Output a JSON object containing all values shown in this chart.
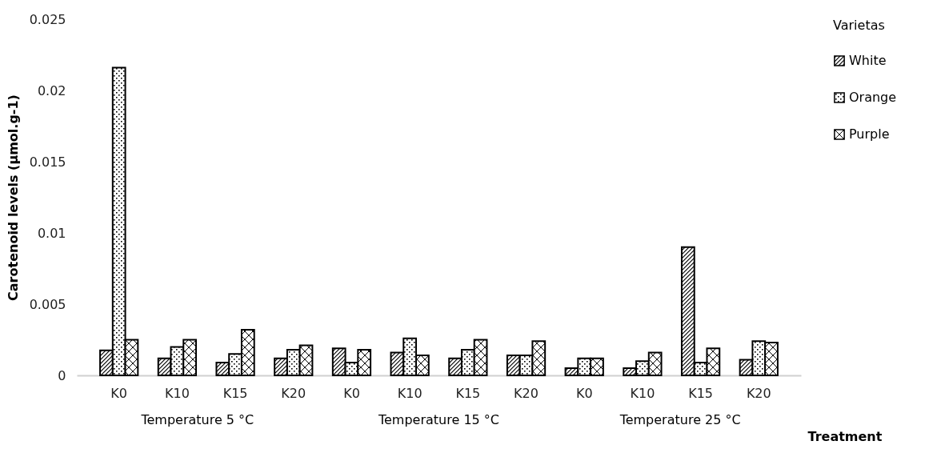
{
  "chart_data": {
    "type": "bar",
    "xlabel": "Treatment",
    "ylabel": "Carotenoid levels (µmol.g-1)",
    "legend_title": "Varietas",
    "categories": [
      "K0",
      "K10",
      "K15",
      "K20",
      "K0",
      "K10",
      "K15",
      "K20",
      "K0",
      "K10",
      "K15",
      "K20"
    ],
    "series": [
      {
        "name": "White",
        "color": "#000000",
        "values": [
          0.00175,
          0.0012,
          0.0009,
          0.0012,
          0.0019,
          0.0016,
          0.0012,
          0.0014,
          0.0005,
          0.0005,
          0.009,
          0.0011
        ]
      },
      {
        "name": "Orange",
        "color": "#000000",
        "values": [
          0.0216,
          0.002,
          0.0015,
          0.0018,
          0.0009,
          0.0026,
          0.0018,
          0.0014,
          0.0012,
          0.001,
          0.0009,
          0.0024
        ]
      },
      {
        "name": "Purple",
        "color": "#000000",
        "values": [
          0.0025,
          0.0025,
          0.0032,
          0.0021,
          0.0018,
          0.0014,
          0.0025,
          0.0024,
          0.0012,
          0.0016,
          0.0019,
          0.0023
        ]
      }
    ],
    "annotations": [
      "Temperature 5 °C",
      "Temperature 15 °C",
      "Temperature 25 °C"
    ],
    "ylim": [
      0,
      0.025
    ],
    "yticks": [
      0,
      0.005,
      0.01,
      0.015,
      0.02,
      0.025
    ],
    "grid": false,
    "legend": "right"
  }
}
